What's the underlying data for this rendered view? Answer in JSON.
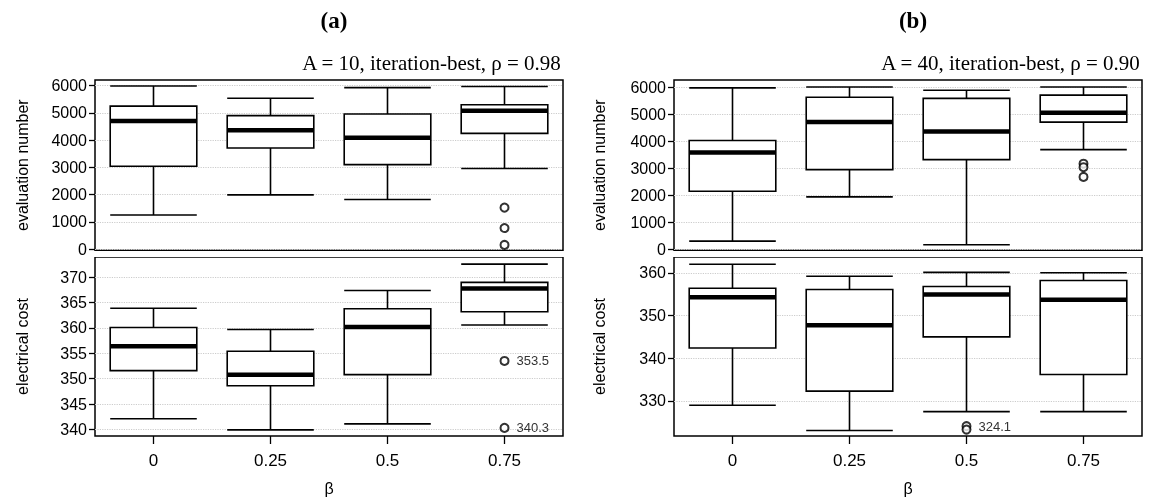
{
  "chart_data": [
    {
      "type": "box",
      "title": "(a)",
      "subtitle": "A = 10, iteration-best, ρ = 0.98",
      "ylabel": "evaluation number",
      "categories": [
        "0",
        "0.25",
        "0.5",
        "0.75"
      ],
      "ylim": [
        -50,
        6210
      ],
      "yticks": [
        0,
        1000,
        2000,
        3000,
        4000,
        5000,
        6000
      ],
      "grid": "y",
      "tick_labels": "y",
      "color": "#000000",
      "boxes": [
        {
          "low": 1250,
          "q1": 3040,
          "median": 4700,
          "q3": 5250,
          "high": 5990
        },
        {
          "low": 1990,
          "q1": 3710,
          "median": 4360,
          "q3": 4900,
          "high": 5540
        },
        {
          "low": 1820,
          "q1": 3100,
          "median": 4090,
          "q3": 4960,
          "high": 5930
        },
        {
          "low": 2960,
          "q1": 4250,
          "median": 5080,
          "q3": 5300,
          "high": 5970,
          "outliers": [
            1520,
            770,
            150
          ]
        }
      ]
    },
    {
      "type": "box",
      "ylabel": "electrical cost",
      "xlabel": "β",
      "categories": [
        "0",
        "0.25",
        "0.5",
        "0.75"
      ],
      "ylim": [
        338.7,
        374
      ],
      "yticks": [
        340,
        345,
        350,
        355,
        360,
        365,
        370
      ],
      "grid": "y",
      "color": "#000000",
      "boxes": [
        {
          "low": 342.1,
          "q1": 351.6,
          "median": 356.4,
          "q3": 360.1,
          "high": 363.9
        },
        {
          "low": 339.9,
          "q1": 348.6,
          "median": 350.8,
          "q3": 355.4,
          "high": 359.7
        },
        {
          "low": 341.1,
          "q1": 350.8,
          "median": 360.2,
          "q3": 363.8,
          "high": 367.4
        },
        {
          "low": 360.6,
          "q1": 363.2,
          "median": 367.8,
          "q3": 369.0,
          "high": 372.6,
          "outliers": [
            353.5,
            340.3
          ]
        }
      ],
      "annotations": [
        "353.5",
        "340.3"
      ]
    },
    {
      "type": "box",
      "title": "(b)",
      "subtitle": "A = 40, iteration-best, ρ = 0.90",
      "ylabel": "evaluation number",
      "categories": [
        "0",
        "0.25",
        "0.5",
        "0.75"
      ],
      "ylim": [
        -50,
        6260
      ],
      "yticks": [
        0,
        1000,
        2000,
        3000,
        4000,
        5000,
        6000
      ],
      "grid": "y",
      "tick_labels": "y",
      "color": "#000000",
      "boxes": [
        {
          "low": 290,
          "q1": 2140,
          "median": 3570,
          "q3": 4020,
          "high": 5970
        },
        {
          "low": 1930,
          "q1": 2940,
          "median": 4700,
          "q3": 5620,
          "high": 6000
        },
        {
          "low": 160,
          "q1": 3310,
          "median": 4350,
          "q3": 5580,
          "high": 5880
        },
        {
          "low": 3680,
          "q1": 4700,
          "median": 5050,
          "q3": 5700,
          "high": 6000,
          "outliers": [
            3160,
            3030,
            2670
          ]
        }
      ]
    },
    {
      "type": "box",
      "ylabel": "electrical cost",
      "xlabel": "β",
      "categories": [
        "0",
        "0.25",
        "0.5",
        "0.75"
      ],
      "ylim": [
        321.8,
        363.7
      ],
      "yticks": [
        330,
        340,
        350,
        360
      ],
      "grid": "y",
      "color": "#000000",
      "boxes": [
        {
          "low": 329.0,
          "q1": 342.4,
          "median": 354.3,
          "q3": 356.4,
          "high": 362.0
        },
        {
          "low": 323.1,
          "q1": 332.3,
          "median": 347.7,
          "q3": 356.1,
          "high": 359.2
        },
        {
          "low": 327.5,
          "q1": 345.0,
          "median": 354.9,
          "q3": 356.8,
          "high": 360.1,
          "outliers": [
            324.1,
            323.3
          ]
        },
        {
          "low": 327.5,
          "q1": 336.2,
          "median": 353.7,
          "q3": 358.2,
          "high": 360.0
        }
      ],
      "annotations": [
        "324.1"
      ]
    }
  ]
}
